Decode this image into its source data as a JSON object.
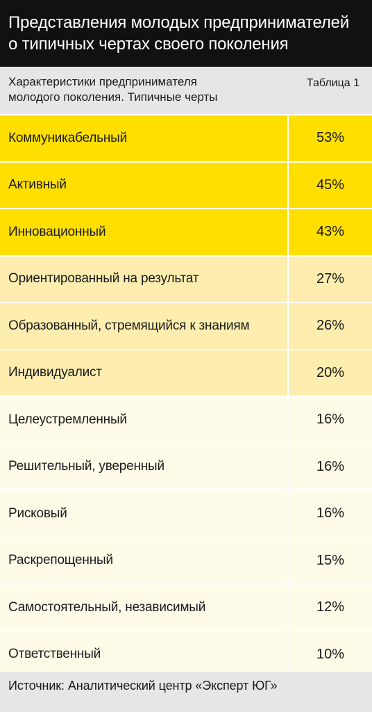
{
  "title": {
    "line1": "Представления молодых предпринимателей",
    "line2": "о типичных чертах своего поколения"
  },
  "header": {
    "label_line1": "Характеристики предпринимателя",
    "label_line2": "молодого поколения. Типичные черты",
    "table_number": "Таблица 1"
  },
  "colors": {
    "tier1": "#ffdf00",
    "tier2": "#fdeeb0",
    "tier3": "#fefbe8",
    "header_bg": "#111111",
    "subheader_bg": "#e6e6e6"
  },
  "chart_data": {
    "type": "table",
    "columns": [
      "Характеристики предпринимателя молодого поколения. Типичные черты",
      "Таблица 1"
    ],
    "rows": [
      {
        "label": "Коммуникабельный",
        "value": "53%",
        "tier": 1
      },
      {
        "label": "Активный",
        "value": "45%",
        "tier": 1
      },
      {
        "label": "Инновационный",
        "value": "43%",
        "tier": 1
      },
      {
        "label": "Ориентированный на результат",
        "value": "27%",
        "tier": 2
      },
      {
        "label": "Образованный, стремящийся к знаниям",
        "value": "26%",
        "tier": 2
      },
      {
        "label": "Индивидуалист",
        "value": "20%",
        "tier": 2
      },
      {
        "label": "Целеустремленный",
        "value": "16%",
        "tier": 3
      },
      {
        "label": "Решительный, уверенный",
        "value": "16%",
        "tier": 3
      },
      {
        "label": "Рисковый",
        "value": "16%",
        "tier": 3
      },
      {
        "label": "Раскрепощенный",
        "value": "15%",
        "tier": 3
      },
      {
        "label": "Самостоятельный, независимый",
        "value": "12%",
        "tier": 3
      },
      {
        "label": "Ответственный",
        "value": "10%",
        "tier": 3
      }
    ]
  },
  "source": "Источник: Аналитический центр «Эксперт ЮГ»"
}
